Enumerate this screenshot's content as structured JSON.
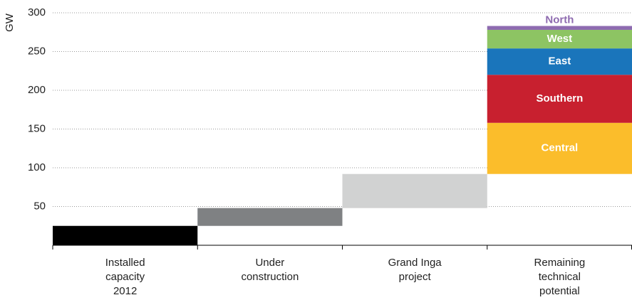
{
  "chart_data": {
    "type": "waterfall",
    "y_label": "GW",
    "categories": [
      [
        "Installed",
        "capacity",
        "2012"
      ],
      [
        "Under",
        "construction"
      ],
      [
        "Grand Inga",
        "project"
      ],
      [
        "Remaining",
        "technical",
        "potential"
      ]
    ],
    "values": [
      25,
      23,
      44,
      null
    ],
    "colors": [
      "#000000",
      "#7f8183",
      "#d1d2d2",
      null
    ],
    "segments": [
      {
        "name": "Central",
        "value": 66,
        "color": "#fbbd2b"
      },
      {
        "name": "Southern",
        "value": 62,
        "color": "#c8202f"
      },
      {
        "name": "East",
        "value": 34,
        "color": "#1a75bb"
      },
      {
        "name": "West",
        "value": 24,
        "color": "#8dc463"
      },
      {
        "name": "North",
        "value": 5,
        "color": "#8e6bb0"
      }
    ],
    "ylim": [
      0,
      300
    ],
    "yticks": [
      50,
      100,
      150,
      200,
      250,
      300
    ],
    "grid": true
  }
}
